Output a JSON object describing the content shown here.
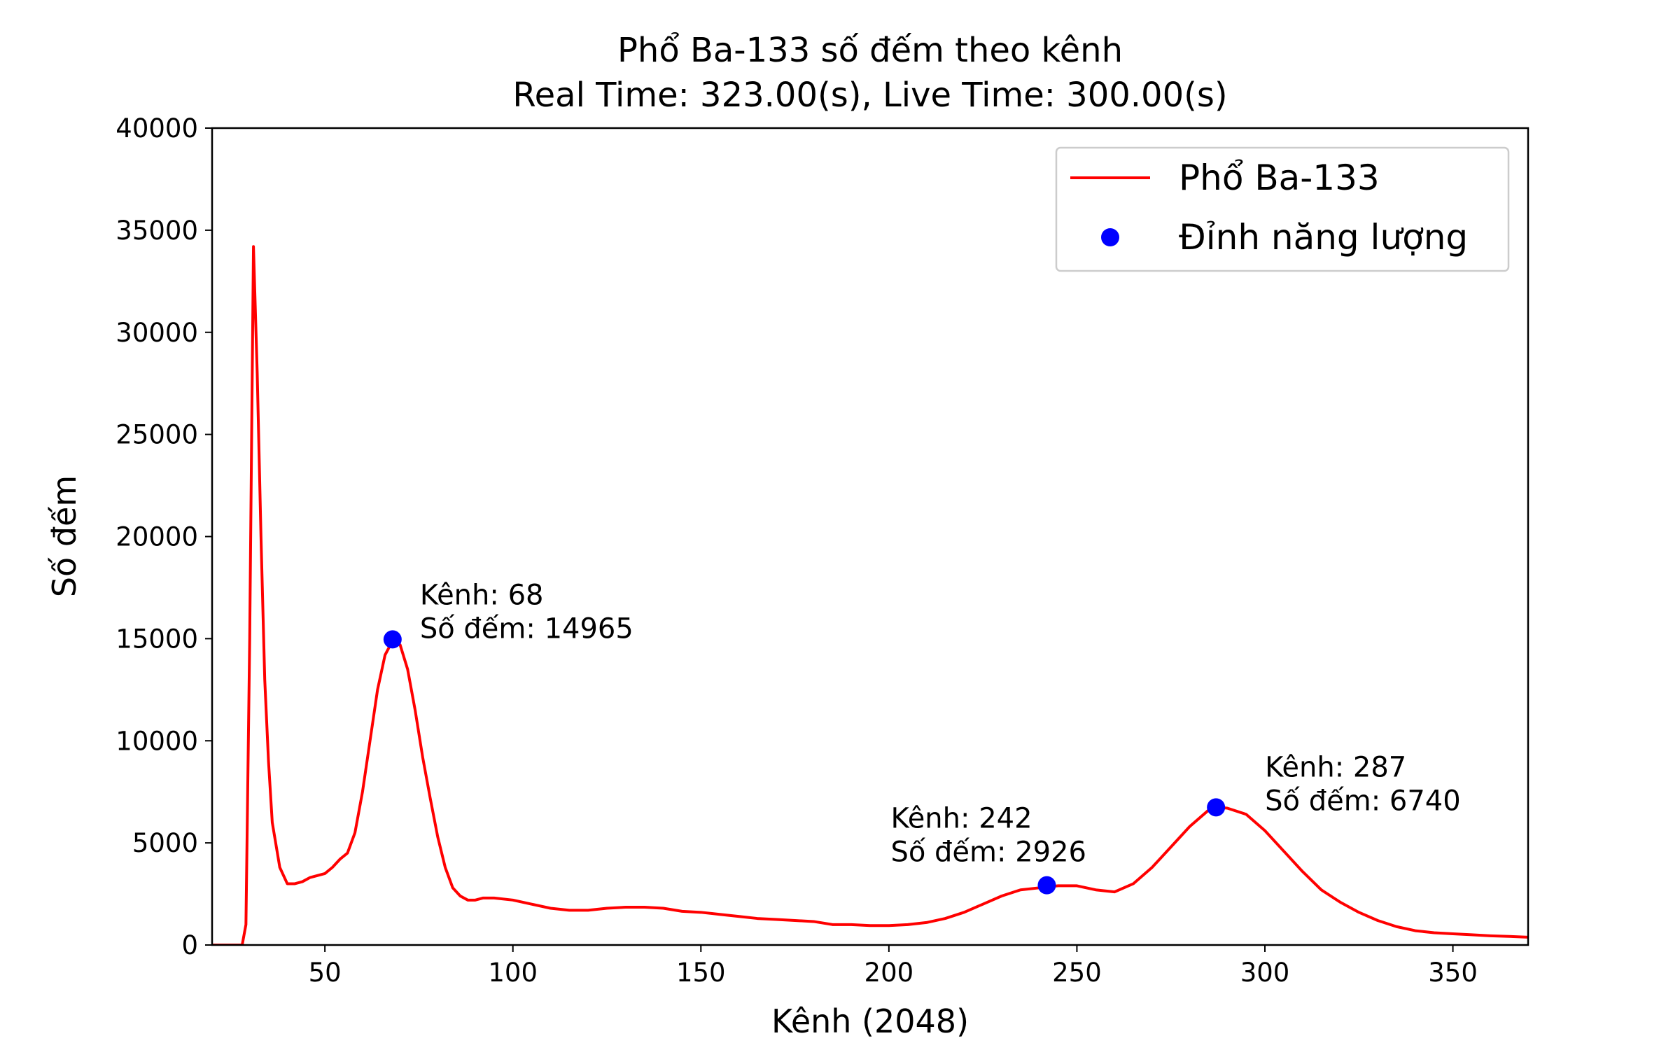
{
  "chart_data": {
    "type": "line",
    "title": "Phổ Ba-133 số đếm theo kênh",
    "subtitle": "Real Time: 323.00(s), Live Time: 300.00(s)",
    "x_label": "Kênh (2048)",
    "y_label": "Số đếm",
    "xlim": [
      20,
      370
    ],
    "ylim": [
      0,
      40000
    ],
    "xticks": [
      50,
      100,
      150,
      200,
      250,
      300,
      350
    ],
    "yticks": [
      0,
      5000,
      10000,
      15000,
      20000,
      25000,
      30000,
      35000,
      40000
    ],
    "legend": "upper right",
    "series": [
      {
        "name": "Phổ Ba-133",
        "color": "#ff0000",
        "x": [
          20,
          28,
          29,
          30,
          31,
          32,
          33,
          34,
          35,
          36,
          38,
          40,
          42,
          44,
          46,
          48,
          50,
          52,
          54,
          56,
          58,
          60,
          62,
          64,
          66,
          68,
          70,
          72,
          74,
          76,
          78,
          80,
          82,
          84,
          86,
          88,
          90,
          92,
          95,
          100,
          105,
          110,
          115,
          120,
          125,
          130,
          135,
          140,
          145,
          150,
          155,
          160,
          165,
          170,
          175,
          180,
          185,
          190,
          195,
          200,
          205,
          210,
          215,
          220,
          225,
          230,
          235,
          240,
          245,
          250,
          255,
          260,
          265,
          270,
          275,
          280,
          285,
          287,
          290,
          295,
          300,
          305,
          310,
          315,
          320,
          325,
          330,
          335,
          340,
          345,
          350,
          355,
          360,
          365,
          370
        ],
        "values": [
          0,
          0,
          1000,
          15000,
          34200,
          28000,
          20000,
          13000,
          9000,
          6000,
          3800,
          3000,
          3000,
          3100,
          3300,
          3400,
          3500,
          3800,
          4200,
          4500,
          5500,
          7500,
          10000,
          12500,
          14200,
          14900,
          14700,
          13500,
          11500,
          9200,
          7200,
          5300,
          3800,
          2800,
          2400,
          2200,
          2200,
          2300,
          2300,
          2200,
          2000,
          1800,
          1700,
          1700,
          1800,
          1850,
          1850,
          1800,
          1650,
          1600,
          1500,
          1400,
          1300,
          1250,
          1200,
          1150,
          1000,
          1000,
          950,
          950,
          1000,
          1100,
          1300,
          1600,
          2000,
          2400,
          2700,
          2800,
          2900,
          2900,
          2700,
          2600,
          3000,
          3800,
          4800,
          5800,
          6600,
          6750,
          6700,
          6400,
          5600,
          4600,
          3600,
          2700,
          2100,
          1600,
          1200,
          900,
          700,
          600,
          550,
          500,
          450,
          420,
          380
        ]
      },
      {
        "name": "Đỉnh năng lượng",
        "type": "scatter",
        "color": "#0000ff",
        "x": [
          68,
          242,
          287
        ],
        "values": [
          14965,
          2926,
          6740
        ]
      }
    ],
    "annotations": [
      [
        "Kênh: 68",
        "Số đếm: 14965"
      ],
      [
        "Kênh: 242",
        "Số đếm: 2926"
      ],
      [
        "Kênh: 287",
        "Số đếm: 6740"
      ]
    ]
  }
}
